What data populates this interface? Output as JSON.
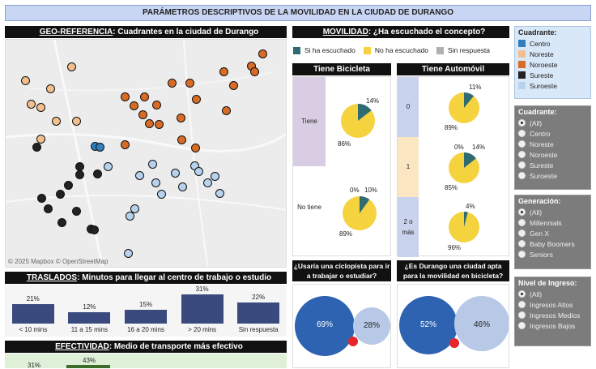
{
  "title": "PARÁMETROS DESCRIPTIVOS DE LA  MOVILIDAD EN LA CIUDAD DE DURANGO",
  "geo": {
    "header_bold": "GEO-REFERENCIA",
    "header_rest": ": Cuadrantes en la ciudad de Durango",
    "attribution": "© 2025 Mapbox  © OpenStreetMap"
  },
  "traslados": {
    "header_bold": "TRASLADOS",
    "header_rest": ": Minutos para llegar al centro de trabajo o estudio",
    "bars": [
      {
        "label": "< 10 mins",
        "pct": "21%",
        "value": 21
      },
      {
        "label": "11 a 15 mins",
        "pct": "12%",
        "value": 12
      },
      {
        "label": "16 a 20 mins",
        "pct": "15%",
        "value": 15
      },
      {
        "label": "> 20 mins",
        "pct": "31%",
        "value": 31
      },
      {
        "label": "Sin respuesta",
        "pct": "22%",
        "value": 22
      }
    ]
  },
  "efectividad": {
    "header_bold": "EFECTIVIDAD",
    "header_rest": ": Medio de transporte más efectivo",
    "v1": "31%",
    "v2": "43%"
  },
  "movilidad": {
    "header_bold": "MOVILIDAD",
    "header_rest": ": ¿Ha escuchado el concepto?",
    "legend": [
      {
        "label": "Si ha escuchado",
        "color": "#2e6b73"
      },
      {
        "label": "No ha escuchado",
        "color": "#f5d33f"
      },
      {
        "label": "Sin respuesta",
        "color": "#b0b0b0"
      }
    ]
  },
  "bicicleta": {
    "header": "Tiene Bicicleta",
    "rows": [
      {
        "label": "Tiene",
        "si": "14%",
        "no": "86%"
      },
      {
        "label": "No tiene",
        "sr": "0%",
        "si": "10%",
        "no": "89%"
      }
    ]
  },
  "automovil": {
    "header": "Tiene Automóvil",
    "rows": [
      {
        "label": "0",
        "si": "11%",
        "no": "89%"
      },
      {
        "label": "1",
        "sr": "0%",
        "si": "14%",
        "no": "85%"
      },
      {
        "label": "2 o más",
        "si": "4%",
        "no": "96%"
      }
    ]
  },
  "ciclopista": {
    "question": "¿Usaría una ciclopista para ir a trabajar o estudiar?",
    "big": "69%",
    "small": "28%"
  },
  "apta": {
    "question": "¿Es Durango una ciudad apta para la movilidad en bicicleta?",
    "big": "52%",
    "small": "46%"
  },
  "filters": {
    "cuadrante_legend_title": "Cuadrante:",
    "cuadrante_legend": [
      {
        "label": "Centro",
        "color": "#2f7fbd"
      },
      {
        "label": "Noreste",
        "color": "#f4bf8e"
      },
      {
        "label": "Noroeste",
        "color": "#d86b25"
      },
      {
        "label": "Sureste",
        "color": "#222222"
      },
      {
        "label": "Suroeste",
        "color": "#b7d2ec"
      }
    ],
    "cuadrante_title": "Cuadrante:",
    "cuadrante_opts": [
      "(All)",
      "Centro",
      "Noreste",
      "Noroeste",
      "Sureste",
      "Suroeste"
    ],
    "generacion_title": "Generación:",
    "generacion_opts": [
      "(All)",
      "Millennials",
      "Gen X",
      "Baby Boomers",
      "Seniors"
    ],
    "ingreso_title": "Nivel de Ingreso:",
    "ingreso_opts": [
      "(All)",
      "Ingresos Altos",
      "Ingresos Medios",
      "Ingresos Bajos"
    ]
  }
}
